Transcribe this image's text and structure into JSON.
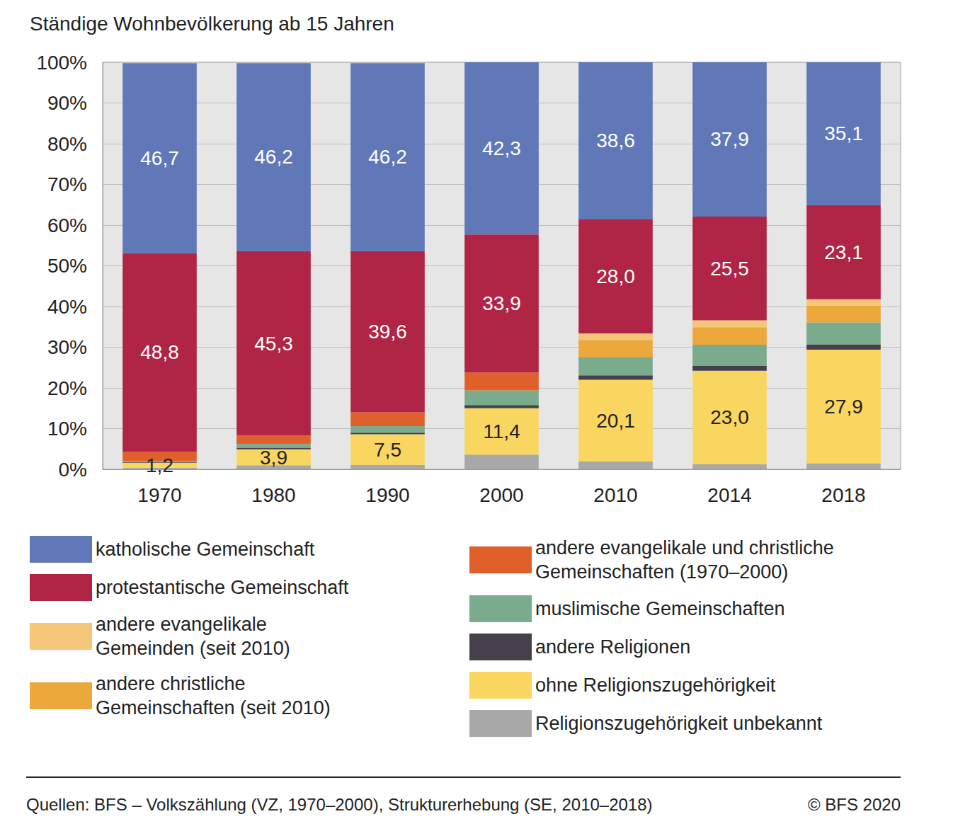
{
  "chart_data": {
    "type": "bar",
    "title": "Ständige Wohnbevölkerung ab 15 Jahren",
    "annotations": [
      "Quellen: BFS – Volkszählung (VZ, 1970–2000), Strukturerhebung (SE, 2010–2018)",
      "© BFS 2020"
    ],
    "categories": [
      "1970",
      "1980",
      "1990",
      "2000",
      "2010",
      "2014",
      "2018"
    ],
    "stacked": true,
    "grid": true,
    "legend": "bottom",
    "ylim": [
      0,
      100
    ],
    "yticks": [
      {
        "value": 0,
        "label": "0%"
      },
      {
        "value": 10,
        "label": "10%"
      },
      {
        "value": 20,
        "label": "20%"
      },
      {
        "value": 30,
        "label": "30%"
      },
      {
        "value": 40,
        "label": "40%"
      },
      {
        "value": 50,
        "label": "50%"
      },
      {
        "value": 60,
        "label": "60%"
      },
      {
        "value": 70,
        "label": "70%"
      },
      {
        "value": 80,
        "label": "80%"
      },
      {
        "value": 90,
        "label": "90%"
      },
      {
        "value": 100,
        "label": "100%"
      }
    ],
    "series": [
      {
        "name": "katholische Gemeinschaft",
        "color": "#6078b8",
        "values": [
          46.7,
          46.2,
          46.2,
          42.3,
          38.6,
          37.9,
          35.1
        ],
        "data_labels": true,
        "value_labels": [
          "46,7",
          "46,2",
          "46,2",
          "42,3",
          "38,6",
          "37,9",
          "35,1"
        ]
      },
      {
        "name": "protestantische Gemeinschaft",
        "color": "#b02445",
        "values": [
          48.8,
          45.3,
          39.6,
          33.9,
          28.0,
          25.5,
          23.1
        ],
        "data_labels": true,
        "value_labels": [
          "48,8",
          "45,3",
          "39,6",
          "33,9",
          "28,0",
          "25,5",
          "23,1"
        ]
      },
      {
        "name": "andere evangelikale Gemeinden (seit 2010)",
        "color": "#f5c578",
        "values": [
          null,
          null,
          null,
          null,
          1.6,
          1.7,
          1.6
        ]
      },
      {
        "name": "andere christliche Gemeinschaften (seit 2010)",
        "color": "#eda83b",
        "values": [
          null,
          null,
          null,
          null,
          4.2,
          4.3,
          4.1
        ]
      },
      {
        "name": "andere evangelikale und christliche Gemeinschaften (1970–2000)",
        "color": "#e0602b",
        "values": [
          2.3,
          2.1,
          3.4,
          4.4,
          null,
          null,
          null
        ]
      },
      {
        "name": "muslimische Gemeinschaften",
        "color": "#7aab8c",
        "values": [
          0.2,
          0.9,
          1.6,
          3.6,
          4.5,
          5.1,
          5.4
        ]
      },
      {
        "name": "andere Religionen",
        "color": "#47404a",
        "values": [
          0.2,
          0.4,
          0.4,
          0.8,
          1.1,
          1.3,
          1.3
        ]
      },
      {
        "name": "ohne Religionszugehörigkeit",
        "color": "#f9d660",
        "values": [
          1.2,
          3.9,
          7.5,
          11.4,
          20.1,
          23.0,
          27.9
        ],
        "data_labels": true,
        "value_labels": [
          "1,2",
          "3,9",
          "7,5",
          "11,4",
          "20,1",
          "23,0",
          "27,9"
        ]
      },
      {
        "name": "Religionszugehörigkeit unbekannt",
        "color": "#a8a8a8",
        "values": [
          0.4,
          1.0,
          1.1,
          3.6,
          1.9,
          1.2,
          1.5
        ]
      }
    ]
  }
}
